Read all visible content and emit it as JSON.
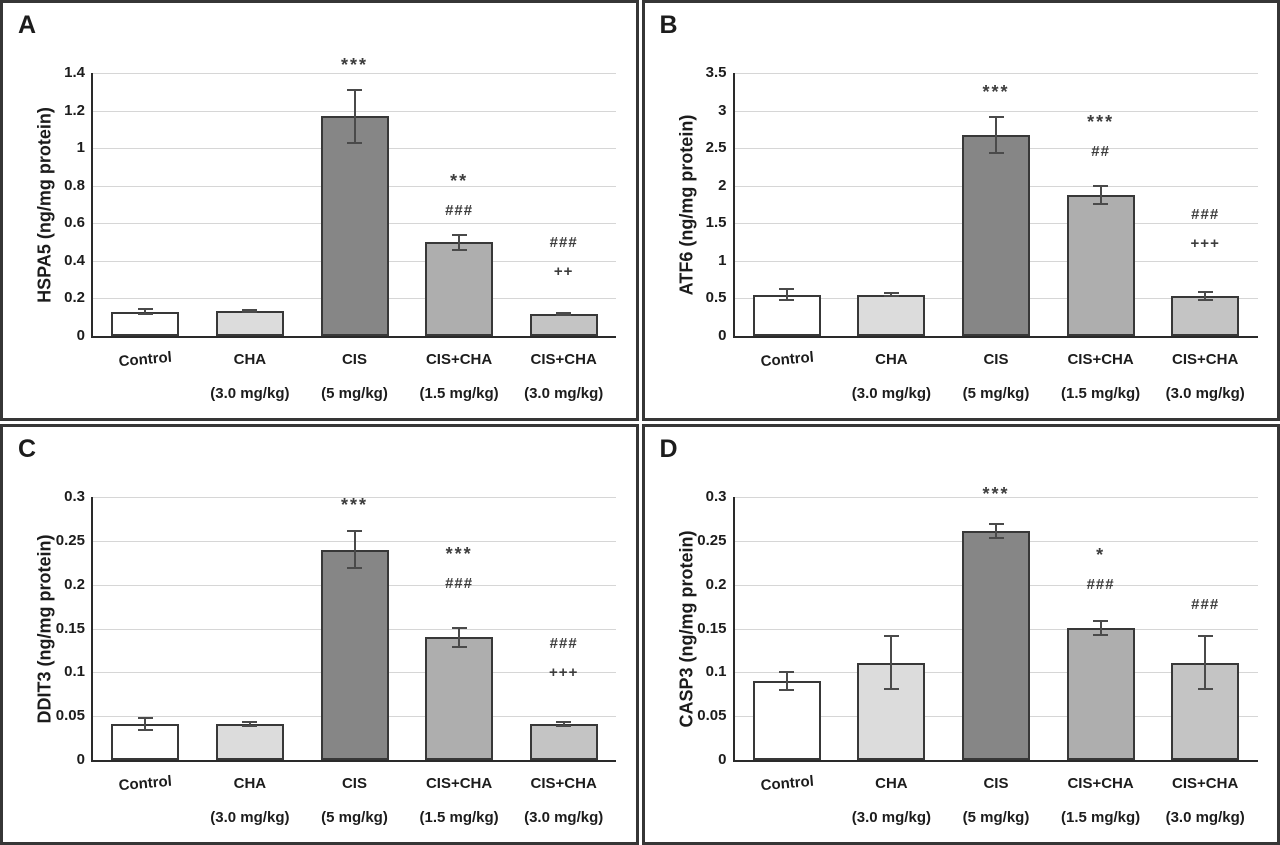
{
  "style": {
    "bar_fills": [
      "#ffffff",
      "#dcdcdc",
      "#868686",
      "#aeaeae",
      "#c4c4c4"
    ],
    "bar_border": "#383838",
    "error_color": "#4a4a4a",
    "gridline_color": "#d6d6d6",
    "axis_color": "#2a2a2a",
    "text_color": "#1c1c1c"
  },
  "chart_data": [
    {
      "type": "bar",
      "panel_label": "A",
      "ylabel": "HSPA5 (ng/mg protein)",
      "xlabel": "",
      "ylim": [
        0,
        1.4
      ],
      "grid": true,
      "legend": "none",
      "yticks": [
        {
          "v": 1.4,
          "label": "1.4"
        },
        {
          "v": 1.2,
          "label": "1.2"
        },
        {
          "v": 1.0,
          "label": "1"
        },
        {
          "v": 0.8,
          "label": "0.8"
        },
        {
          "v": 0.6,
          "label": "0.6"
        },
        {
          "v": 0.4,
          "label": "0.4"
        },
        {
          "v": 0.2,
          "label": "0.2"
        },
        {
          "v": 0,
          "label": "0"
        }
      ],
      "categories": [
        {
          "line1": "Control",
          "line2": ""
        },
        {
          "line1": "CHA",
          "line2": "(3.0 mg/kg)"
        },
        {
          "line1": "CIS",
          "line2": "(5 mg/kg)"
        },
        {
          "line1": "CIS+CHA",
          "line2": "(1.5 mg/kg)"
        },
        {
          "line1": "CIS+CHA",
          "line2": "(3.0 mg/kg)"
        }
      ],
      "values": [
        0.13,
        0.135,
        1.17,
        0.5,
        0.115
      ],
      "errors": [
        0.015,
        0.005,
        0.14,
        0.04,
        0.005
      ],
      "annotations": [
        [],
        [],
        [
          "***"
        ],
        [
          "**",
          "###"
        ],
        [
          "###",
          "++"
        ]
      ],
      "ann_gaps": [
        0,
        0,
        10,
        10,
        27
      ]
    },
    {
      "type": "bar",
      "panel_label": "B",
      "ylabel": "ATF6 (ng/mg protein)",
      "xlabel": "",
      "ylim": [
        0,
        3.5
      ],
      "grid": true,
      "legend": "none",
      "yticks": [
        {
          "v": 3.5,
          "label": "3.5"
        },
        {
          "v": 3.0,
          "label": "3"
        },
        {
          "v": 2.5,
          "label": "2.5"
        },
        {
          "v": 2.0,
          "label": "2"
        },
        {
          "v": 1.5,
          "label": "1.5"
        },
        {
          "v": 1.0,
          "label": "1"
        },
        {
          "v": 0.5,
          "label": "0.5"
        },
        {
          "v": 0,
          "label": "0"
        }
      ],
      "categories": [
        {
          "line1": "Control",
          "line2": ""
        },
        {
          "line1": "CHA",
          "line2": "(3.0 mg/kg)"
        },
        {
          "line1": "CIS",
          "line2": "(5 mg/kg)"
        },
        {
          "line1": "CIS+CHA",
          "line2": "(1.5 mg/kg)"
        },
        {
          "line1": "CIS+CHA",
          "line2": "(3.0 mg/kg)"
        }
      ],
      "values": [
        0.55,
        0.55,
        2.68,
        1.88,
        0.53
      ],
      "errors": [
        0.07,
        0.02,
        0.24,
        0.12,
        0.05
      ],
      "annotations": [
        [],
        [],
        [
          "***"
        ],
        [
          "***",
          "##"
        ],
        [
          "###",
          "+++"
        ]
      ],
      "ann_gaps": [
        0,
        0,
        10,
        20,
        34
      ]
    },
    {
      "type": "bar",
      "panel_label": "C",
      "ylabel": "DDIT3 (ng/mg protein)",
      "xlabel": "",
      "ylim": [
        0,
        0.3
      ],
      "grid": true,
      "legend": "none",
      "yticks": [
        {
          "v": 0.3,
          "label": "0.3"
        },
        {
          "v": 0.25,
          "label": "0.25"
        },
        {
          "v": 0.2,
          "label": "0.2"
        },
        {
          "v": 0.15,
          "label": "0.15"
        },
        {
          "v": 0.1,
          "label": "0.1"
        },
        {
          "v": 0.05,
          "label": "0.05"
        },
        {
          "v": 0,
          "label": "0"
        }
      ],
      "categories": [
        {
          "line1": "Control",
          "line2": ""
        },
        {
          "line1": "CHA",
          "line2": "(3.0 mg/kg)"
        },
        {
          "line1": "CIS",
          "line2": "(5 mg/kg)"
        },
        {
          "line1": "CIS+CHA",
          "line2": "(1.5 mg/kg)"
        },
        {
          "line1": "CIS+CHA",
          "line2": "(3.0 mg/kg)"
        }
      ],
      "values": [
        0.041,
        0.041,
        0.24,
        0.14,
        0.041
      ],
      "errors": [
        0.007,
        0.002,
        0.021,
        0.011,
        0.002
      ],
      "annotations": [
        [],
        [],
        [
          "***"
        ],
        [
          "***",
          "###"
        ],
        [
          "###",
          "+++"
        ]
      ],
      "ann_gaps": [
        0,
        0,
        11,
        30,
        35
      ]
    },
    {
      "type": "bar",
      "panel_label": "D",
      "ylabel": "CASP3 (ng/mg protein)",
      "xlabel": "",
      "ylim": [
        0,
        0.3
      ],
      "grid": true,
      "legend": "none",
      "yticks": [
        {
          "v": 0.3,
          "label": "0.3"
        },
        {
          "v": 0.25,
          "label": "0.25"
        },
        {
          "v": 0.2,
          "label": "0.2"
        },
        {
          "v": 0.15,
          "label": "0.15"
        },
        {
          "v": 0.1,
          "label": "0.1"
        },
        {
          "v": 0.05,
          "label": "0.05"
        },
        {
          "v": 0,
          "label": "0"
        }
      ],
      "categories": [
        {
          "line1": "Control",
          "line2": ""
        },
        {
          "line1": "CHA",
          "line2": "(3.0 mg/kg)"
        },
        {
          "line1": "CIS",
          "line2": "(5 mg/kg)"
        },
        {
          "line1": "CIS+CHA",
          "line2": "(1.5 mg/kg)"
        },
        {
          "line1": "CIS+CHA",
          "line2": "(3.0 mg/kg)"
        }
      ],
      "values": [
        0.09,
        0.111,
        0.261,
        0.151,
        0.111
      ],
      "errors": [
        0.01,
        0.03,
        0.008,
        0.008,
        0.03
      ],
      "annotations": [
        [],
        [],
        [
          "***"
        ],
        [
          "*",
          "###"
        ],
        [
          "###"
        ]
      ],
      "ann_gaps": [
        0,
        0,
        15,
        22,
        17
      ]
    }
  ]
}
